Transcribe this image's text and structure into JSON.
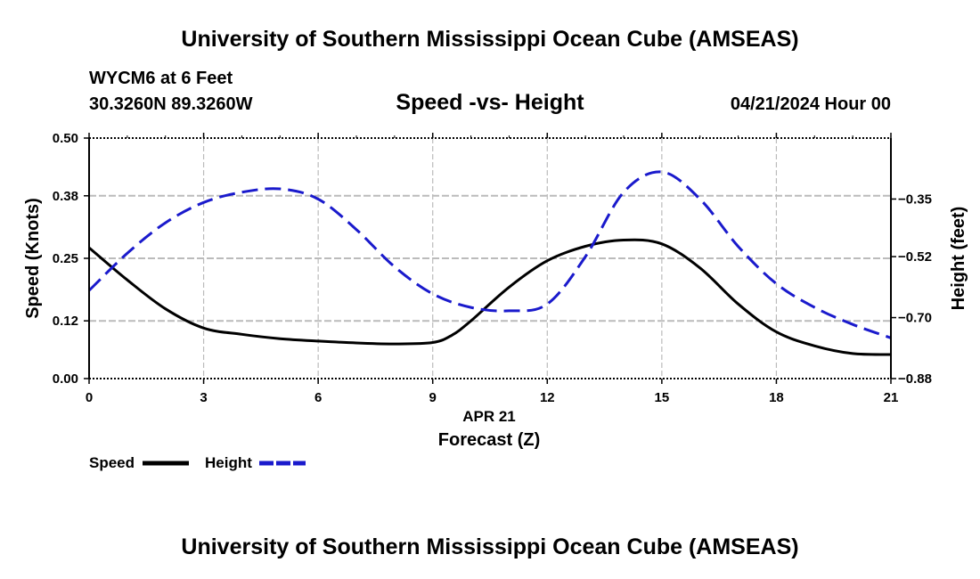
{
  "header": {
    "title": "University of Southern Mississippi Ocean Cube (AMSEAS)",
    "station": "WYCM6 at 6 Feet",
    "coords": "30.3260N  89.3260W",
    "subtitle": "Speed -vs- Height",
    "datetime": "04/21/2024 Hour 00"
  },
  "footer": {
    "title": "University of Southern Mississippi Ocean Cube (AMSEAS)"
  },
  "legend": {
    "speed_label": "Speed",
    "height_label": "Height"
  },
  "colors": {
    "speed": "#000000",
    "height": "#1a1acc",
    "grid": "#bbbbbb"
  },
  "chart_data": {
    "type": "line",
    "title": "Speed -vs- Height",
    "xlabel": "Forecast (Z)",
    "xlabel_date": "APR 21",
    "ylabel": "Speed (Knots)",
    "y2label": "Height (feet)",
    "xlim": [
      0,
      21
    ],
    "ylim": [
      0,
      0.5
    ],
    "y2lim": [
      -0.88,
      -0.17
    ],
    "x_ticks": [
      0,
      3,
      6,
      9,
      12,
      15,
      18,
      21
    ],
    "y_ticks": [
      "0.00",
      "0.12",
      "0.25",
      "0.38",
      "0.50"
    ],
    "y2_ticks": [
      "-0.35",
      "-0.52",
      "-0.70",
      "-0.88"
    ],
    "grid": true,
    "legend_position": "bottom-left",
    "series": [
      {
        "name": "Speed",
        "axis": "left",
        "style": "solid",
        "x": [
          0,
          1,
          2,
          3,
          4,
          5,
          6,
          7,
          8,
          9,
          9.5,
          10,
          11,
          12,
          13,
          14,
          15,
          16,
          17,
          18,
          19,
          20,
          21
        ],
        "values": [
          0.272,
          0.205,
          0.145,
          0.105,
          0.092,
          0.083,
          0.078,
          0.074,
          0.072,
          0.075,
          0.09,
          0.12,
          0.19,
          0.245,
          0.275,
          0.288,
          0.28,
          0.23,
          0.155,
          0.097,
          0.068,
          0.052,
          0.05
        ]
      },
      {
        "name": "Height",
        "axis": "right",
        "style": "dashed",
        "x": [
          0,
          1,
          2,
          3,
          4,
          5,
          6,
          7,
          8,
          9,
          10,
          11,
          12,
          13,
          14,
          15,
          16,
          17,
          18,
          19,
          20,
          21
        ],
        "values": [
          -0.62,
          -0.51,
          -0.42,
          -0.36,
          -0.33,
          -0.32,
          -0.35,
          -0.44,
          -0.55,
          -0.63,
          -0.67,
          -0.68,
          -0.66,
          -0.52,
          -0.33,
          -0.27,
          -0.35,
          -0.49,
          -0.6,
          -0.67,
          -0.72,
          -0.76
        ]
      }
    ]
  }
}
